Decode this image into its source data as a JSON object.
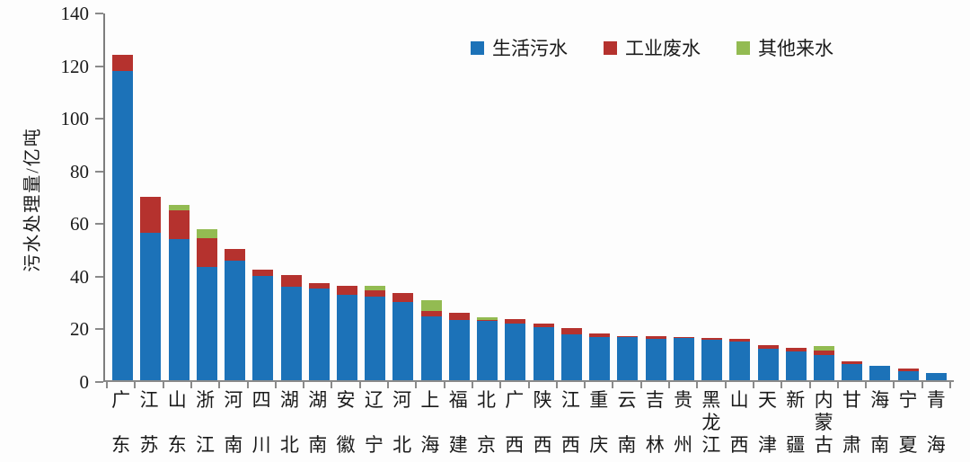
{
  "chart_data": {
    "type": "bar",
    "stacked": true,
    "title": "",
    "xlabel": "",
    "ylabel": "污水处理量/亿吨",
    "ylim": [
      0,
      140
    ],
    "yticks": [
      0,
      20,
      40,
      60,
      80,
      100,
      120,
      140
    ],
    "grid": false,
    "legend_position": "top-center",
    "categories": [
      "广东",
      "江苏",
      "山东",
      "浙江",
      "河南",
      "四川",
      "湖北",
      "湖南",
      "安徽",
      "辽宁",
      "河北",
      "上海",
      "福建",
      "北京",
      "广西",
      "陕西",
      "江西",
      "重庆",
      "云南",
      "吉林",
      "贵州",
      "黑龙江",
      "山西",
      "天津",
      "新疆",
      "内蒙古",
      "甘肃",
      "海南",
      "宁夏",
      "青海"
    ],
    "series": [
      {
        "name": "生活污水",
        "color": "#1C72B8",
        "values": [
          117.5,
          56,
          53.5,
          43,
          45.5,
          39.5,
          35.5,
          35,
          32.5,
          31.7,
          29.7,
          24.4,
          23,
          22.5,
          21.5,
          20,
          17.4,
          16.3,
          16.5,
          15.6,
          16.1,
          15.3,
          14.8,
          12,
          11.1,
          9.7,
          6.3,
          5.3,
          3.5,
          2.6
        ]
      },
      {
        "name": "工业废水",
        "color": "#B5322E",
        "values": [
          6,
          13.5,
          11,
          11,
          4.5,
          2.5,
          4.3,
          1.8,
          3.5,
          2.4,
          3.4,
          2,
          2.5,
          0.5,
          1.8,
          1.4,
          2.4,
          1.6,
          0.4,
          1.1,
          0.3,
          0.8,
          0.8,
          1.3,
          1.1,
          1.6,
          0.8,
          0,
          0.8,
          0
        ]
      },
      {
        "name": "其他来水",
        "color": "#93BB52",
        "values": [
          0,
          0,
          2,
          3.5,
          0,
          0,
          0,
          0,
          0,
          1.9,
          0,
          4,
          0,
          1,
          0,
          0,
          0,
          0,
          0,
          0,
          0,
          0,
          0,
          0,
          0,
          1.7,
          0,
          0,
          0,
          0
        ]
      }
    ]
  },
  "colors": {
    "axis": "#8a8a8a",
    "text": "#1a1a1a",
    "background": "#fdfdfd"
  }
}
